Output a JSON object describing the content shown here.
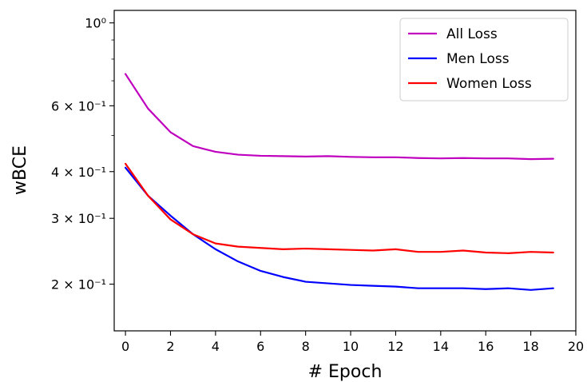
{
  "chart_data": {
    "type": "line",
    "title": "",
    "xlabel": "# Epoch",
    "ylabel": "wBCE",
    "yscale": "log",
    "xlim": [
      -0.5,
      20
    ],
    "ylim": [
      0.15,
      1.08
    ],
    "x": [
      0,
      1,
      2,
      3,
      4,
      5,
      6,
      7,
      8,
      9,
      10,
      11,
      12,
      13,
      14,
      15,
      16,
      17,
      18,
      19
    ],
    "x_ticks": [
      0,
      2,
      4,
      6,
      8,
      10,
      12,
      14,
      16,
      18,
      20
    ],
    "y_ticks": [
      {
        "value": 1.0,
        "label": "10⁰"
      },
      {
        "value": 0.6,
        "label": "6 × 10⁻¹"
      },
      {
        "value": 0.4,
        "label": "4 × 10⁻¹"
      },
      {
        "value": 0.3,
        "label": "3 × 10⁻¹"
      },
      {
        "value": 0.2,
        "label": "2 × 10⁻¹"
      }
    ],
    "legend_position": "top-right",
    "grid": false,
    "series": [
      {
        "name": "All Loss",
        "color": "#bf00bf",
        "values": [
          0.73,
          0.59,
          0.51,
          0.468,
          0.452,
          0.444,
          0.441,
          0.44,
          0.439,
          0.44,
          0.438,
          0.437,
          0.437,
          0.435,
          0.434,
          0.435,
          0.434,
          0.434,
          0.432,
          0.433
        ]
      },
      {
        "name": "Men Loss",
        "color": "#0000ff",
        "values": [
          0.41,
          0.345,
          0.305,
          0.272,
          0.248,
          0.23,
          0.217,
          0.209,
          0.203,
          0.201,
          0.199,
          0.198,
          0.197,
          0.195,
          0.195,
          0.195,
          0.194,
          0.195,
          0.193,
          0.195
        ]
      },
      {
        "name": "Women Loss",
        "color": "#ff0000",
        "values": [
          0.42,
          0.345,
          0.298,
          0.272,
          0.257,
          0.252,
          0.25,
          0.248,
          0.249,
          0.248,
          0.247,
          0.246,
          0.248,
          0.244,
          0.244,
          0.246,
          0.243,
          0.242,
          0.244,
          0.243
        ]
      }
    ]
  }
}
